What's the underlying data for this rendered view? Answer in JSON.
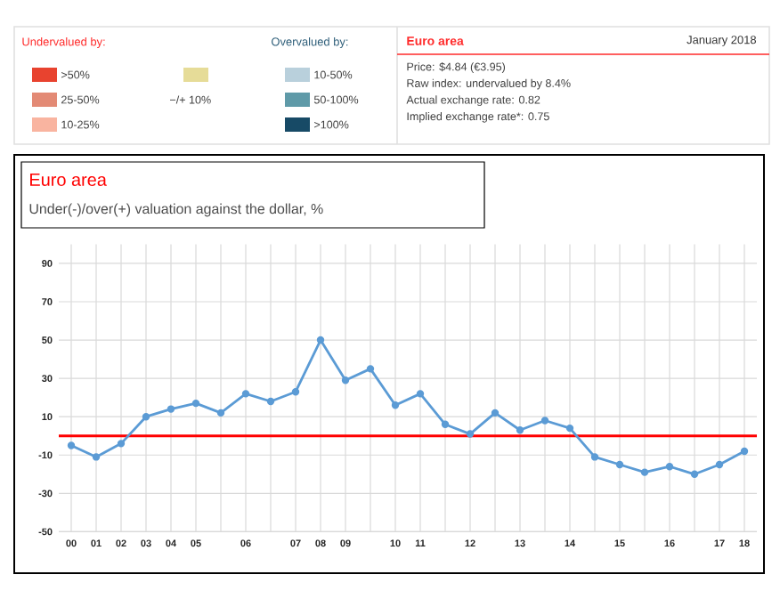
{
  "chart_data": [
    {
      "type": "other",
      "title": "Euro area",
      "subtitle": "January 2018",
      "annotations": [
        "Undervalued by:",
        "Overvalued by:",
        "Price: $4.84 (€3.95)",
        "Raw index: undervalued by 8.4%",
        "Actual exchange rate: 0.82",
        "Implied exchange rate*: 0.75"
      ],
      "categories": [
        ">50%",
        "25-50%",
        "10-25%",
        "−/+ 10%",
        "10-50%",
        "50-100%",
        ">100%"
      ],
      "colors": [
        "#e8432f",
        "#e38a75",
        "#f9b4a0",
        "#e6dc98",
        "#b9d0dc",
        "#5f9aa8",
        "#174a66"
      ]
    },
    {
      "type": "line",
      "title": "Euro area",
      "subtitle": "Under(-)/over(+) valuation against the dollar, %",
      "categories": [
        "00",
        "01",
        "02",
        "03",
        "04",
        "05",
        null,
        "06",
        null,
        "07",
        "08",
        "09",
        null,
        "10",
        "11",
        null,
        "12",
        null,
        "13",
        null,
        "14",
        null,
        "15",
        null,
        "16",
        null,
        "17",
        "18"
      ],
      "series": [
        {
          "color": "#5b9bd5",
          "values": [
            -5,
            -11,
            -4,
            10,
            14,
            17,
            12,
            22,
            18,
            23,
            50,
            29,
            35,
            16,
            22,
            6,
            1,
            12,
            3,
            8,
            4,
            -11,
            -15,
            -19,
            -16,
            -20,
            -15,
            -8
          ]
        }
      ],
      "ylim": [
        -50,
        100
      ],
      "yticks": [
        -50,
        -30,
        -10,
        10,
        30,
        50,
        70,
        90
      ],
      "grid": true,
      "marker": "circle",
      "line_style": "solid",
      "ref_lines": [
        {
          "axis": "y",
          "value": 0,
          "color": "#ff0000"
        }
      ]
    }
  ]
}
